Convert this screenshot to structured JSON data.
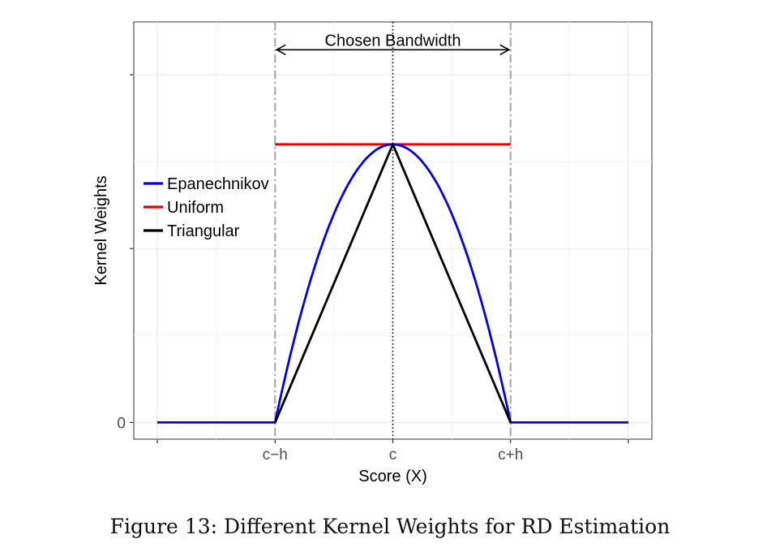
{
  "caption": "Figure 13: Different Kernel Weights for RD Estimation",
  "chart_data": {
    "type": "line",
    "xlabel": "Score (X)",
    "ylabel": "Kernel Weights",
    "x_ticks": [
      {
        "value": -1,
        "label": "c−h"
      },
      {
        "value": 0,
        "label": "c"
      },
      {
        "value": 1,
        "label": "c+h"
      }
    ],
    "x_unlabeled_ticks": [
      -2,
      2
    ],
    "y_ticks": [
      {
        "value": 0,
        "label": "0"
      },
      {
        "value": 0.625,
        "label": ""
      },
      {
        "value": 1.25,
        "label": ""
      }
    ],
    "xlim": [
      -2.2,
      2.2
    ],
    "ylim": [
      -0.06,
      1.44
    ],
    "grid": true,
    "legend_position": "left",
    "annotation": {
      "text": "Chosen Bandwidth",
      "from": -1,
      "to": 1,
      "y": 1.34
    },
    "reference_lines": [
      {
        "x": -1,
        "style": "dashdot",
        "color": "#aaaaaa"
      },
      {
        "x": 1,
        "style": "dashdot",
        "color": "#aaaaaa"
      },
      {
        "x": 0,
        "style": "dotted",
        "color": "#000000"
      }
    ],
    "series": [
      {
        "name": "Epanechnikov",
        "color": "#0000ee",
        "x": [
          -2,
          -1,
          -0.9,
          -0.8,
          -0.7,
          -0.6,
          -0.5,
          -0.4,
          -0.3,
          -0.2,
          -0.1,
          0,
          0.1,
          0.2,
          0.3,
          0.4,
          0.5,
          0.6,
          0.7,
          0.8,
          0.9,
          1,
          2
        ],
        "y": [
          0,
          0,
          0.19,
          0.36,
          0.51,
          0.64,
          0.75,
          0.84,
          0.91,
          0.96,
          0.99,
          1,
          0.99,
          0.96,
          0.91,
          0.84,
          0.75,
          0.64,
          0.51,
          0.36,
          0.19,
          0,
          0
        ]
      },
      {
        "name": "Uniform",
        "color": "#e60000",
        "x": [
          -1,
          1
        ],
        "y": [
          1,
          1
        ]
      },
      {
        "name": "Triangular",
        "color": "#000000",
        "x": [
          -1,
          0,
          1
        ],
        "y": [
          0,
          1,
          0
        ]
      }
    ]
  }
}
